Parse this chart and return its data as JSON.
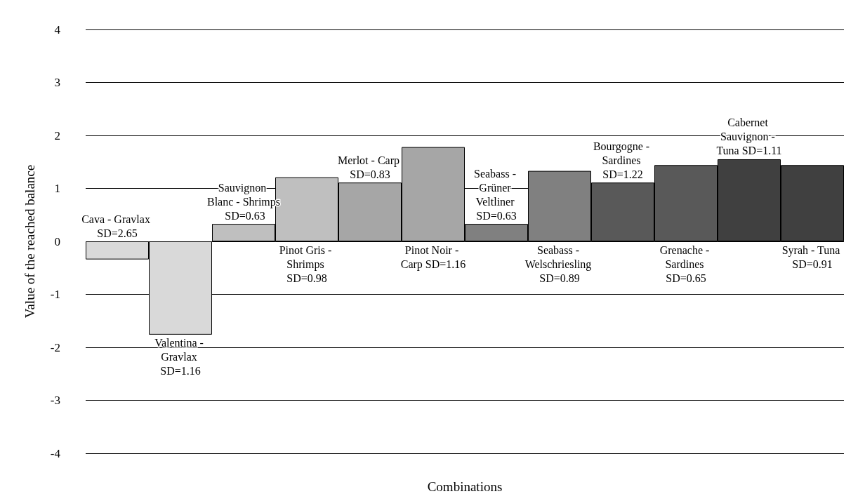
{
  "chart_data": {
    "type": "bar",
    "xlabel": "Combinations",
    "ylabel": "Value of the reached balance",
    "categories": [
      "Cava - Gravlax SD=2.65",
      "Valentina - Gravlax SD=1.16",
      "Sauvignon Blanc - Shrimps SD=0.63",
      "Pinot Gris - Shrimps SD=0.98",
      "Merlot - Carp SD=0.83",
      "Pinot Noir - Carp SD=1.16",
      "Seabass - Grüner Veltliner SD=0.63",
      "Seabass - Welschriesling SD=0.89",
      "Bourgogne - Sardines SD=1.22",
      "Grenache - Sardines SD=0.65",
      "Cabernet Sauvignon - Tuna SD=1.11",
      "Syrah - Tuna SD=0.91"
    ],
    "values": [
      -0.34,
      -1.76,
      0.33,
      1.21,
      1.11,
      1.78,
      0.33,
      1.33,
      1.11,
      1.44,
      1.55,
      1.44
    ],
    "colors": [
      "#d9d9d9",
      "#d9d9d9",
      "#bfbfbf",
      "#bfbfbf",
      "#a6a6a6",
      "#a6a6a6",
      "#808080",
      "#808080",
      "#595959",
      "#595959",
      "#404040",
      "#404040"
    ],
    "ylim": [
      -4,
      4
    ],
    "yticks": [
      -4,
      -3,
      -2,
      -1,
      0,
      1,
      2,
      3,
      4
    ],
    "grid": "y"
  }
}
